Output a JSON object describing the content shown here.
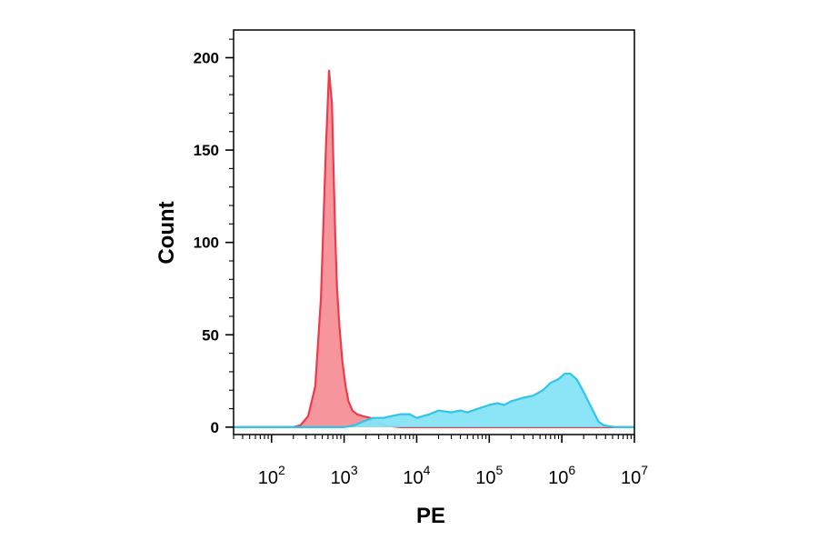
{
  "chart_data": {
    "type": "area",
    "xlabel": "PE",
    "ylabel": "Count",
    "x_scale": "log10",
    "xlim": [
      30,
      10000000
    ],
    "ylim": [
      -4,
      215
    ],
    "grid": false,
    "legend": "none",
    "x_ticks": [
      {
        "value": 100,
        "base": "10",
        "exp": "2"
      },
      {
        "value": 1000,
        "base": "10",
        "exp": "3"
      },
      {
        "value": 10000,
        "base": "10",
        "exp": "4"
      },
      {
        "value": 100000,
        "base": "10",
        "exp": "5"
      },
      {
        "value": 1000000,
        "base": "10",
        "exp": "6"
      },
      {
        "value": 10000000,
        "base": "10",
        "exp": "7"
      }
    ],
    "y_ticks": [
      {
        "value": 0,
        "label": "0"
      },
      {
        "value": 50,
        "label": "50"
      },
      {
        "value": 100,
        "label": "100"
      },
      {
        "value": 150,
        "label": "150"
      },
      {
        "value": 200,
        "label": "200"
      }
    ],
    "series": [
      {
        "fill": "#f58f96",
        "stroke": "#ee3b4b",
        "x": [
          30,
          200,
          250,
          320,
          400,
          480,
          560,
          620,
          680,
          720,
          760,
          800,
          860,
          950,
          1050,
          1150,
          1300,
          1500,
          1800,
          2300,
          2900,
          3600,
          4500,
          6000,
          10000000
        ],
        "y": [
          0,
          0,
          1,
          6,
          22,
          70,
          150,
          193,
          175,
          135,
          100,
          75,
          55,
          35,
          22,
          14,
          9,
          7,
          6,
          5,
          3,
          1,
          0.5,
          0,
          0
        ]
      },
      {
        "fill": "#86e3f7",
        "stroke": "#2fc4ec",
        "x": [
          30,
          1000,
          1400,
          1800,
          2500,
          3500,
          4500,
          6000,
          8000,
          10000,
          15000,
          20000,
          30000,
          40000,
          50000,
          70000,
          100000,
          130000,
          160000,
          200000,
          300000,
          400000,
          550000,
          700000,
          900000,
          1100000,
          1300000,
          1600000,
          2000000,
          2600000,
          3200000,
          3800000,
          4500000,
          5500000,
          10000000
        ],
        "y": [
          0,
          0,
          1,
          3,
          5,
          5,
          6,
          7,
          7,
          5,
          7,
          9,
          8,
          9,
          8,
          10,
          12,
          13,
          12,
          14,
          16,
          17,
          20,
          24,
          26,
          29,
          29,
          26,
          19,
          10,
          3,
          1,
          0.5,
          0,
          0
        ]
      }
    ]
  }
}
